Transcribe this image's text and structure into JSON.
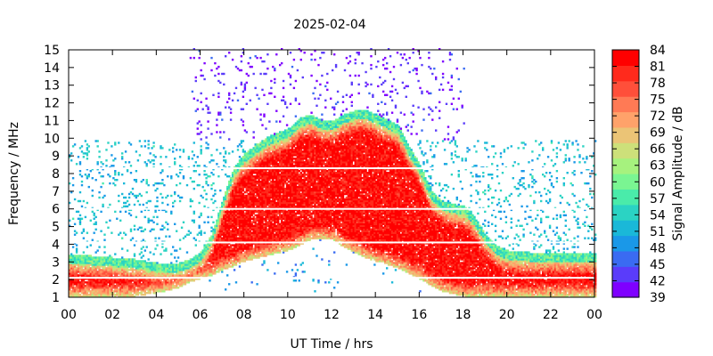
{
  "chart_data": {
    "type": "heatmap",
    "title": "2025-02-04",
    "xlabel": "UT Time / hrs",
    "ylabel": "Frequency / MHz",
    "colorbar_label": "Signal Amplitude / dB",
    "xlim": [
      0,
      24
    ],
    "ylim": [
      1,
      15
    ],
    "x_ticks": [
      "00",
      "02",
      "04",
      "06",
      "08",
      "10",
      "12",
      "14",
      "16",
      "18",
      "20",
      "22",
      "00"
    ],
    "y_ticks": [
      "1",
      "2",
      "3",
      "4",
      "5",
      "6",
      "7",
      "8",
      "9",
      "10",
      "11",
      "12",
      "13",
      "14",
      "15"
    ],
    "colorbar_ticks": [
      "39",
      "42",
      "45",
      "48",
      "51",
      "54",
      "57",
      "60",
      "63",
      "66",
      "69",
      "72",
      "75",
      "78",
      "81",
      "84"
    ],
    "zlim": [
      39,
      84
    ],
    "colormap": [
      "#7f00ff",
      "#5a3cfa",
      "#3a6bf2",
      "#1a98e8",
      "#1ab8d8",
      "#2bd3c3",
      "#4aebaa",
      "#7af592",
      "#a6f27e",
      "#cde07a",
      "#ebc476",
      "#ffa26a",
      "#ff7a55",
      "#ff4f3a",
      "#ff2a1c",
      "#ff0000"
    ],
    "grid": false,
    "profile": {
      "description_free": true,
      "time_hours": [
        0,
        1,
        2,
        3,
        4,
        5,
        5.5,
        6,
        6.5,
        7,
        7.5,
        8,
        9,
        10,
        10.5,
        11,
        11.5,
        12,
        12.5,
        13,
        13.5,
        14,
        15,
        15.5,
        16,
        16.5,
        17,
        18,
        18.5,
        19,
        19.5,
        20,
        21,
        22,
        23,
        24
      ],
      "strong_top_mhz": [
        2.9,
        2.8,
        2.7,
        2.6,
        2.4,
        2.4,
        2.6,
        3.0,
        4.0,
        6.0,
        7.8,
        8.6,
        9.5,
        10.0,
        10.6,
        10.8,
        10.5,
        10.4,
        10.8,
        11.0,
        11.1,
        10.8,
        10.2,
        9.0,
        8.0,
        6.5,
        5.9,
        5.6,
        5.0,
        4.0,
        3.4,
        3.1,
        3.0,
        3.0,
        3.0,
        3.0
      ],
      "strong_bottom_mhz": [
        1.0,
        1.0,
        1.0,
        1.0,
        1.2,
        1.5,
        1.8,
        2.0,
        2.2,
        2.5,
        2.7,
        3.0,
        3.3,
        3.6,
        3.9,
        4.2,
        4.3,
        4.2,
        3.8,
        3.5,
        3.2,
        3.0,
        2.6,
        2.3,
        2.0,
        1.6,
        1.3,
        1.0,
        1.0,
        1.0,
        1.0,
        1.0,
        1.0,
        1.0,
        1.0,
        1.0
      ]
    }
  }
}
